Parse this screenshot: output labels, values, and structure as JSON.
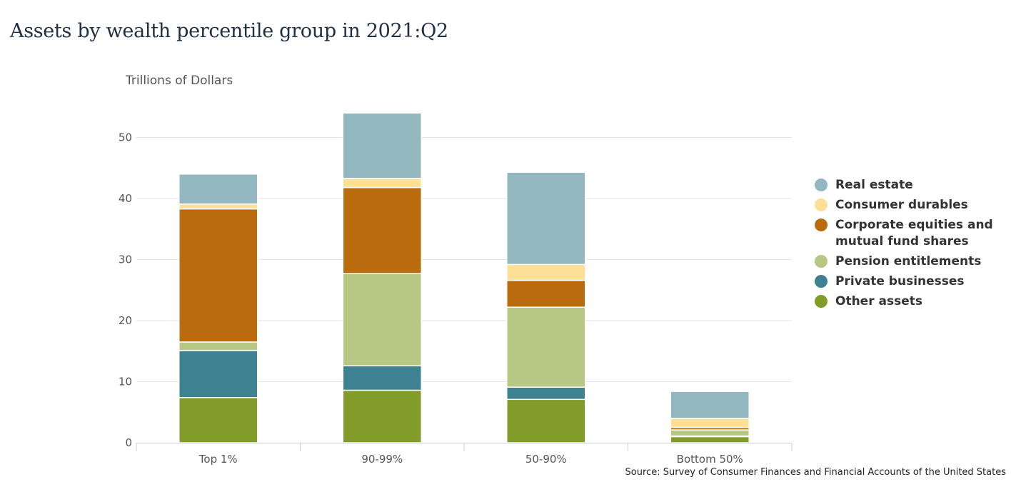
{
  "chart_data": {
    "type": "bar",
    "stacked": true,
    "title": "Assets by wealth percentile group in 2021:Q2",
    "ylabel": "Trillions of Dollars",
    "xlabel": "",
    "ylim": [
      0,
      55
    ],
    "yticks": [
      0,
      10,
      20,
      30,
      40,
      50
    ],
    "grid": true,
    "legend_position": "right",
    "categories": [
      "Top 1%",
      "90-99%",
      "50-90%",
      "Bottom 50%"
    ],
    "series": [
      {
        "name": "Other assets",
        "color": "#829c2a",
        "values": [
          7.4,
          8.6,
          7.1,
          1.0
        ]
      },
      {
        "name": "Private businesses",
        "color": "#3e8190",
        "values": [
          7.7,
          4.0,
          2.0,
          0.1
        ]
      },
      {
        "name": "Pension entitlements",
        "color": "#b6c884",
        "values": [
          1.4,
          15.1,
          13.1,
          1.0
        ]
      },
      {
        "name": "Corporate equities and mutual fund shares",
        "color": "#b96b0d",
        "values": [
          21.8,
          14.1,
          4.4,
          0.4
        ]
      },
      {
        "name": "Consumer durables",
        "color": "#fde095",
        "values": [
          0.8,
          1.5,
          2.6,
          1.5
        ]
      },
      {
        "name": "Real estate",
        "color": "#93b7bf",
        "values": [
          4.9,
          10.7,
          15.1,
          4.4
        ]
      }
    ],
    "source": "Source: Survey of Consumer Finances and Financial Accounts of the United States"
  },
  "legend_order": [
    "Real estate",
    "Consumer durables",
    "Corporate equities and mutual fund shares",
    "Pension entitlements",
    "Private businesses",
    "Other assets"
  ],
  "legend_display": [
    {
      "label": "Real estate",
      "color": "#93b7bf"
    },
    {
      "label": "Consumer durables",
      "color": "#fde095"
    },
    {
      "label": "Corporate equities and mutual fund shares",
      "color": "#b96b0d"
    },
    {
      "label": "Pension entitlements",
      "color": "#b6c884"
    },
    {
      "label": "Private businesses",
      "color": "#3e8190"
    },
    {
      "label": "Other assets",
      "color": "#829c2a"
    }
  ]
}
